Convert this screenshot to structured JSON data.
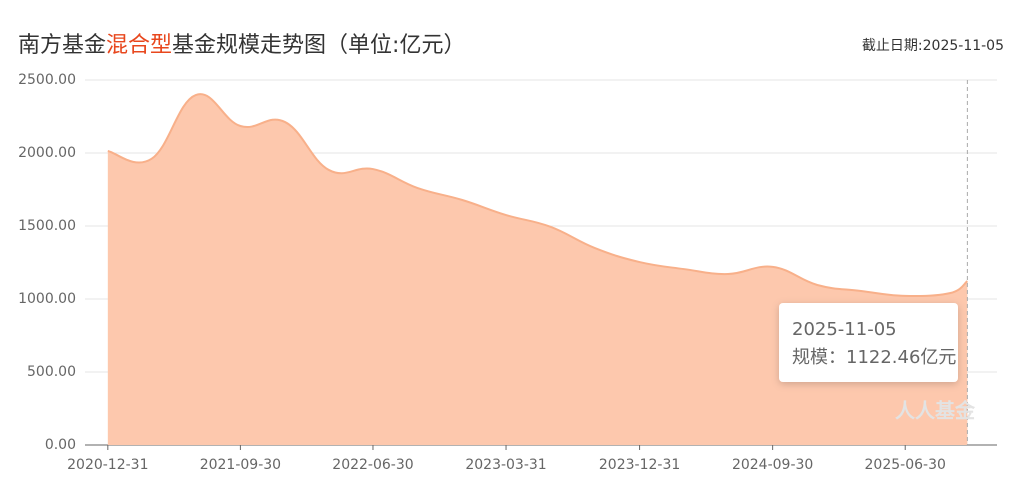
{
  "chart_data": {
    "type": "area",
    "title_prefix": "南方基金",
    "title_highlight": "混合型",
    "title_suffix": "基金规模走势图（单位:亿元）",
    "as_of": "截止日期:2025-11-05",
    "x": [
      "2020-12-31",
      "2021-03-31",
      "2021-06-30",
      "2021-09-30",
      "2021-12-31",
      "2022-03-31",
      "2022-06-30",
      "2022-09-30",
      "2022-12-31",
      "2023-03-31",
      "2023-06-30",
      "2023-09-30",
      "2023-12-31",
      "2024-03-31",
      "2024-06-30",
      "2024-09-30",
      "2024-12-31",
      "2025-03-31",
      "2025-06-30",
      "2025-09-30",
      "2025-11-05"
    ],
    "series": [
      {
        "name": "规模",
        "color": "#f8b08a",
        "fill": "#fdc8ad",
        "values": [
          2014,
          1960,
          2397,
          2185,
          2212,
          1884,
          1890,
          1760,
          1678,
          1575,
          1495,
          1349,
          1253,
          1205,
          1171,
          1220,
          1096,
          1055,
          1021,
          1040,
          1122.46
        ]
      }
    ],
    "xlim": [
      "2020-11-14",
      "2026-01-05"
    ],
    "xticks": [
      "2020-12-31",
      "2021-09-30",
      "2022-06-30",
      "2023-03-31",
      "2023-12-31",
      "2024-09-30",
      "2025-06-30"
    ],
    "ylim": [
      0,
      2500
    ],
    "yticks": [
      {
        "value": 0,
        "label": "0.00"
      },
      {
        "value": 500,
        "label": "500.00"
      },
      {
        "value": 1000,
        "label": "1000.00"
      },
      {
        "value": 1500,
        "label": "1500.00"
      },
      {
        "value": 2000,
        "label": "2000.00"
      },
      {
        "value": 2500,
        "label": "2500.00"
      }
    ],
    "grid": true,
    "tooltip": {
      "date": "2025-11-05",
      "text": "规模：1122.46亿元"
    },
    "watermark": "人人基金"
  }
}
